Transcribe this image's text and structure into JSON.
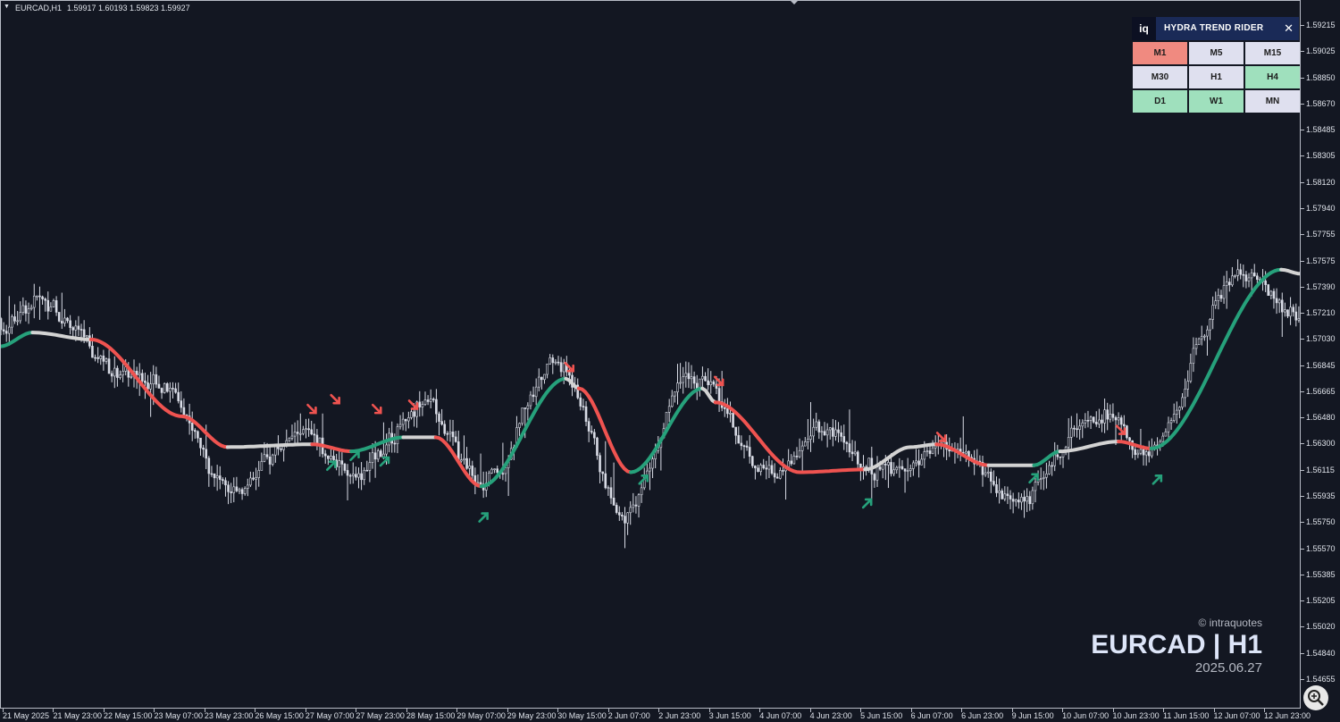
{
  "header": {
    "symbol": "EURCAD,H1",
    "ohlc": "1.59917 1.60193 1.59823 1.59927"
  },
  "price_axis": [
    "1.59215",
    "1.59025",
    "1.58850",
    "1.58670",
    "1.58485",
    "1.58305",
    "1.58120",
    "1.57940",
    "1.57755",
    "1.57575",
    "1.57390",
    "1.57210",
    "1.57030",
    "1.56845",
    "1.56665",
    "1.56480",
    "1.56300",
    "1.56115",
    "1.55935",
    "1.55750",
    "1.55570",
    "1.55385",
    "1.55205",
    "1.55020",
    "1.54840",
    "1.54655"
  ],
  "time_axis": [
    "21 May 2025",
    "21 May 23:00",
    "22 May 15:00",
    "23 May 07:00",
    "23 May 23:00",
    "26 May 15:00",
    "27 May 07:00",
    "27 May 23:00",
    "28 May 15:00",
    "29 May 07:00",
    "29 May 23:00",
    "30 May 15:00",
    "2 Jun 07:00",
    "2 Jun 23:00",
    "3 Jun 15:00",
    "4 Jun 07:00",
    "4 Jun 23:00",
    "5 Jun 15:00",
    "6 Jun 07:00",
    "6 Jun 23:00",
    "9 Jun 15:00",
    "10 Jun 07:00",
    "10 Jun 23:00",
    "11 Jun 15:00",
    "12 Jun 07:00",
    "12 Jun 23:00"
  ],
  "panel": {
    "logo": "iq",
    "title": "HYDRA TREND RIDER",
    "close": "✕",
    "timeframes": [
      {
        "label": "M1",
        "state": "bear"
      },
      {
        "label": "M5",
        "state": "neutral"
      },
      {
        "label": "M15",
        "state": "neutral"
      },
      {
        "label": "M30",
        "state": "neutral"
      },
      {
        "label": "H1",
        "state": "neutral"
      },
      {
        "label": "H4",
        "state": "bull"
      },
      {
        "label": "D1",
        "state": "bull"
      },
      {
        "label": "W1",
        "state": "bull"
      },
      {
        "label": "MN",
        "state": "neutral"
      }
    ]
  },
  "watermark": {
    "brand": "© intraquotes",
    "symbol": "EURCAD | H1",
    "date": "2025.06.27"
  },
  "colors": {
    "background": "#131722",
    "candle": "#d9dce6",
    "bull": "#26a17b",
    "bear": "#ef5350",
    "neutral": "#d3d3d3",
    "tf_bull": "#9fe0bd",
    "tf_bear": "#f08a80",
    "tf_neutral": "#dfe0ef"
  },
  "chart_data": {
    "type": "candlestick",
    "symbol": "EURCAD",
    "timeframe": "H1",
    "ylim": [
      1.5462,
      1.593
    ],
    "trend_line": [
      {
        "t": 0,
        "y": 1.57,
        "state": "bull"
      },
      {
        "t": 0.025,
        "y": 1.571,
        "state": "neutral"
      },
      {
        "t": 0.07,
        "y": 1.5705,
        "state": "bear"
      },
      {
        "t": 0.14,
        "y": 1.565,
        "state": "bear"
      },
      {
        "t": 0.175,
        "y": 1.5628,
        "state": "neutral"
      },
      {
        "t": 0.24,
        "y": 1.563,
        "state": "bear"
      },
      {
        "t": 0.27,
        "y": 1.5625,
        "state": "bull"
      },
      {
        "t": 0.31,
        "y": 1.5635,
        "state": "neutral"
      },
      {
        "t": 0.335,
        "y": 1.5635,
        "state": "bear"
      },
      {
        "t": 0.37,
        "y": 1.56,
        "state": "bull"
      },
      {
        "t": 0.435,
        "y": 1.5677,
        "state": "neutral"
      },
      {
        "t": 0.445,
        "y": 1.567,
        "state": "bear"
      },
      {
        "t": 0.485,
        "y": 1.561,
        "state": "bull"
      },
      {
        "t": 0.54,
        "y": 1.567,
        "state": "neutral"
      },
      {
        "t": 0.55,
        "y": 1.566,
        "state": "bear"
      },
      {
        "t": 0.615,
        "y": 1.561,
        "state": "bear"
      },
      {
        "t": 0.665,
        "y": 1.5612,
        "state": "neutral"
      },
      {
        "t": 0.7,
        "y": 1.5628,
        "state": "neutral"
      },
      {
        "t": 0.72,
        "y": 1.563,
        "state": "bear"
      },
      {
        "t": 0.76,
        "y": 1.5615,
        "state": "neutral"
      },
      {
        "t": 0.795,
        "y": 1.5615,
        "state": "bull"
      },
      {
        "t": 0.815,
        "y": 1.5625,
        "state": "neutral"
      },
      {
        "t": 0.86,
        "y": 1.5632,
        "state": "bear"
      },
      {
        "t": 0.885,
        "y": 1.5627,
        "state": "bull"
      },
      {
        "t": 0.985,
        "y": 1.5755,
        "state": "neutral"
      },
      {
        "t": 1.0,
        "y": 1.5752,
        "state": "neutral"
      }
    ],
    "signals": [
      {
        "t": 0.24,
        "type": "sell",
        "y": 1.5655
      },
      {
        "t": 0.258,
        "type": "sell",
        "y": 1.5662
      },
      {
        "t": 0.29,
        "type": "sell",
        "y": 1.5655
      },
      {
        "t": 0.318,
        "type": "sell",
        "y": 1.5658
      },
      {
        "t": 0.438,
        "type": "sell",
        "y": 1.5685
      },
      {
        "t": 0.553,
        "type": "sell",
        "y": 1.5675
      },
      {
        "t": 0.724,
        "type": "sell",
        "y": 1.5635
      },
      {
        "t": 0.862,
        "type": "sell",
        "y": 1.564
      },
      {
        "t": 0.255,
        "type": "buy",
        "y": 1.5615
      },
      {
        "t": 0.273,
        "type": "buy",
        "y": 1.5622
      },
      {
        "t": 0.296,
        "type": "buy",
        "y": 1.5618
      },
      {
        "t": 0.372,
        "type": "buy",
        "y": 1.5578
      },
      {
        "t": 0.495,
        "type": "buy",
        "y": 1.5605
      },
      {
        "t": 0.667,
        "type": "buy",
        "y": 1.5588
      },
      {
        "t": 0.795,
        "type": "buy",
        "y": 1.5606
      },
      {
        "t": 0.89,
        "type": "buy",
        "y": 1.5605
      }
    ]
  }
}
